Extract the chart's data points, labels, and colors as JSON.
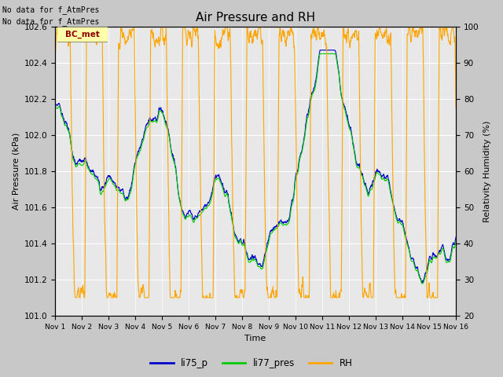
{
  "title": "Air Pressure and RH",
  "xlabel": "Time",
  "ylabel_left": "Air Pressure (kPa)",
  "ylabel_right": "Relativity Humidity (%)",
  "annotation_line1": "No data for f_AtmPres",
  "annotation_line2": "No data for f_AtmPres",
  "label_tag": "BC_met",
  "ylim_left": [
    101.0,
    102.6
  ],
  "ylim_right": [
    20,
    100
  ],
  "yticks_left": [
    101.0,
    101.2,
    101.4,
    101.6,
    101.8,
    102.0,
    102.2,
    102.4,
    102.6
  ],
  "yticks_right": [
    20,
    30,
    40,
    50,
    60,
    70,
    80,
    90,
    100
  ],
  "color_li75": "#0000cc",
  "color_li77": "#00cc00",
  "color_rh": "#ffa500",
  "legend_labels": [
    "li75_p",
    "li77_pres",
    "RH"
  ],
  "fig_bg_color": "#c8c8c8",
  "plot_bg_color": "#e8e8e8"
}
